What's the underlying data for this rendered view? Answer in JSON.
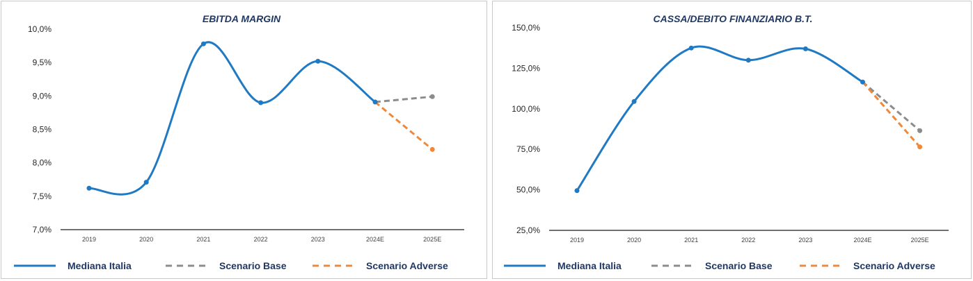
{
  "chart_data": [
    {
      "type": "line",
      "title": "EBITDA MARGIN",
      "categories": [
        "2019",
        "2020",
        "2021",
        "2022",
        "2023",
        "2024E",
        "2025E"
      ],
      "yticks": [
        "7,0%",
        "7,5%",
        "8,0%",
        "8,5%",
        "9,0%",
        "9,5%",
        "10,0%"
      ],
      "ylim": [
        7.0,
        10.0
      ],
      "series": [
        {
          "name": "Mediana Italia",
          "color": "#1f7ac3",
          "dash": "none",
          "values": [
            7.62,
            7.71,
            9.78,
            8.9,
            9.52,
            8.91,
            null
          ]
        },
        {
          "name": "Scenario Base",
          "color": "#8c8c8c",
          "dash": "dashed",
          "values": [
            null,
            null,
            null,
            null,
            null,
            8.91,
            8.99
          ]
        },
        {
          "name": "Scenario Adverse",
          "color": "#f0883a",
          "dash": "dashed",
          "values": [
            null,
            null,
            null,
            null,
            null,
            8.91,
            8.2
          ]
        }
      ],
      "legend": "bottom"
    },
    {
      "type": "line",
      "title": "CASSA/DEBITO FINANZIARIO B.T.",
      "categories": [
        "2019",
        "2020",
        "2021",
        "2022",
        "2023",
        "2024E",
        "2025E"
      ],
      "yticks": [
        "25,0%",
        "50,0%",
        "75,0%",
        "100,0%",
        "125,0%",
        "150,0%"
      ],
      "ylim": [
        25,
        150
      ],
      "series": [
        {
          "name": "Mediana Italia",
          "color": "#1f7ac3",
          "dash": "none",
          "values": [
            49.5,
            104.5,
            137.5,
            130.0,
            137.0,
            116.5,
            null
          ]
        },
        {
          "name": "Scenario Base",
          "color": "#8c8c8c",
          "dash": "dashed",
          "values": [
            null,
            null,
            null,
            null,
            null,
            116.5,
            86.5
          ]
        },
        {
          "name": "Scenario Adverse",
          "color": "#f0883a",
          "dash": "dashed",
          "values": [
            null,
            null,
            null,
            null,
            null,
            116.5,
            76.5
          ]
        }
      ],
      "legend": "bottom"
    }
  ]
}
